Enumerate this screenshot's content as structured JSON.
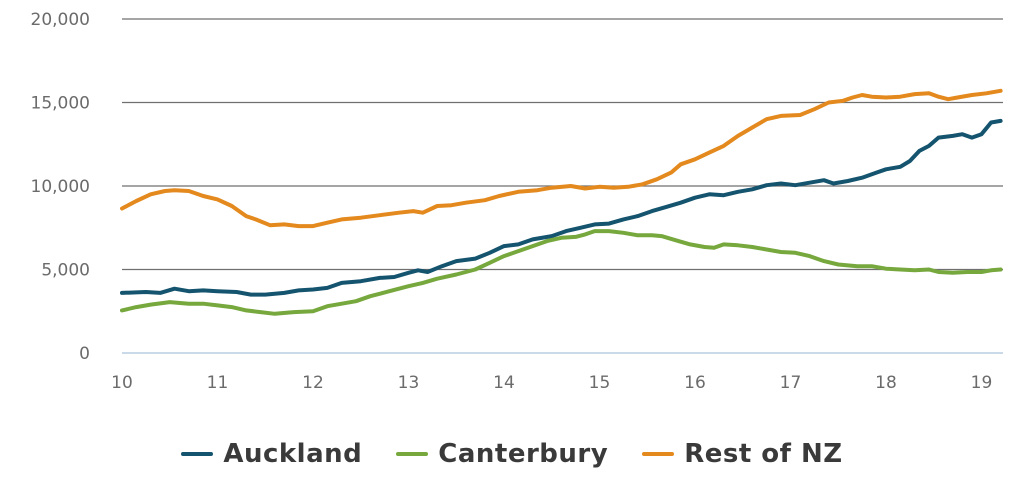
{
  "chart_data": {
    "type": "line",
    "title": "",
    "xlabel": "",
    "ylabel": "",
    "xlim": [
      10,
      19.2
    ],
    "ylim": [
      0,
      20000
    ],
    "grid": true,
    "legend_position": "bottom",
    "x_ticks": [
      {
        "value": 10,
        "label": "10"
      },
      {
        "value": 11,
        "label": "11"
      },
      {
        "value": 12,
        "label": "12"
      },
      {
        "value": 13,
        "label": "13"
      },
      {
        "value": 14,
        "label": "14"
      },
      {
        "value": 15,
        "label": "15"
      },
      {
        "value": 16,
        "label": "16"
      },
      {
        "value": 17,
        "label": "17"
      },
      {
        "value": 18,
        "label": "18"
      },
      {
        "value": 19,
        "label": "19"
      }
    ],
    "y_ticks": [
      {
        "value": 0,
        "label": "0"
      },
      {
        "value": 5000,
        "label": "5,000"
      },
      {
        "value": 10000,
        "label": "10,000"
      },
      {
        "value": 15000,
        "label": "15,000"
      },
      {
        "value": 20000,
        "label": "20,000"
      }
    ],
    "series": [
      {
        "name": "Auckland",
        "color": "#15546e",
        "points": [
          [
            10.0,
            3600
          ],
          [
            10.25,
            3650
          ],
          [
            10.4,
            3600
          ],
          [
            10.55,
            3850
          ],
          [
            10.7,
            3700
          ],
          [
            10.85,
            3750
          ],
          [
            11.0,
            3700
          ],
          [
            11.2,
            3650
          ],
          [
            11.35,
            3500
          ],
          [
            11.5,
            3500
          ],
          [
            11.7,
            3600
          ],
          [
            11.85,
            3750
          ],
          [
            12.0,
            3800
          ],
          [
            12.15,
            3900
          ],
          [
            12.3,
            4200
          ],
          [
            12.5,
            4300
          ],
          [
            12.7,
            4500
          ],
          [
            12.85,
            4550
          ],
          [
            13.0,
            4800
          ],
          [
            13.1,
            4950
          ],
          [
            13.2,
            4850
          ],
          [
            13.35,
            5200
          ],
          [
            13.5,
            5500
          ],
          [
            13.7,
            5650
          ],
          [
            13.85,
            6000
          ],
          [
            14.0,
            6400
          ],
          [
            14.15,
            6500
          ],
          [
            14.3,
            6800
          ],
          [
            14.5,
            7000
          ],
          [
            14.65,
            7300
          ],
          [
            14.8,
            7500
          ],
          [
            14.95,
            7700
          ],
          [
            15.1,
            7750
          ],
          [
            15.25,
            8000
          ],
          [
            15.4,
            8200
          ],
          [
            15.55,
            8500
          ],
          [
            15.7,
            8750
          ],
          [
            15.85,
            9000
          ],
          [
            16.0,
            9300
          ],
          [
            16.15,
            9500
          ],
          [
            16.3,
            9450
          ],
          [
            16.45,
            9650
          ],
          [
            16.6,
            9800
          ],
          [
            16.75,
            10050
          ],
          [
            16.9,
            10150
          ],
          [
            17.05,
            10050
          ],
          [
            17.2,
            10200
          ],
          [
            17.35,
            10350
          ],
          [
            17.45,
            10150
          ],
          [
            17.6,
            10300
          ],
          [
            17.75,
            10500
          ],
          [
            17.9,
            10800
          ],
          [
            18.0,
            11000
          ],
          [
            18.15,
            11150
          ],
          [
            18.25,
            11500
          ],
          [
            18.35,
            12100
          ],
          [
            18.45,
            12400
          ],
          [
            18.55,
            12900
          ],
          [
            18.7,
            13000
          ],
          [
            18.8,
            13100
          ],
          [
            18.9,
            12900
          ],
          [
            19.0,
            13100
          ],
          [
            19.1,
            13800
          ],
          [
            19.2,
            13900
          ]
        ]
      },
      {
        "name": "Canterbury",
        "color": "#76a83d",
        "points": [
          [
            10.0,
            2550
          ],
          [
            10.15,
            2750
          ],
          [
            10.3,
            2900
          ],
          [
            10.5,
            3050
          ],
          [
            10.7,
            2950
          ],
          [
            10.85,
            2950
          ],
          [
            11.0,
            2850
          ],
          [
            11.15,
            2750
          ],
          [
            11.3,
            2550
          ],
          [
            11.45,
            2450
          ],
          [
            11.6,
            2350
          ],
          [
            11.8,
            2450
          ],
          [
            12.0,
            2500
          ],
          [
            12.15,
            2800
          ],
          [
            12.3,
            2950
          ],
          [
            12.45,
            3100
          ],
          [
            12.6,
            3400
          ],
          [
            12.8,
            3700
          ],
          [
            13.0,
            4000
          ],
          [
            13.15,
            4200
          ],
          [
            13.3,
            4450
          ],
          [
            13.5,
            4700
          ],
          [
            13.7,
            5000
          ],
          [
            13.85,
            5400
          ],
          [
            14.0,
            5800
          ],
          [
            14.15,
            6100
          ],
          [
            14.3,
            6400
          ],
          [
            14.45,
            6700
          ],
          [
            14.6,
            6900
          ],
          [
            14.75,
            6950
          ],
          [
            14.85,
            7100
          ],
          [
            14.95,
            7300
          ],
          [
            15.1,
            7300
          ],
          [
            15.25,
            7200
          ],
          [
            15.4,
            7050
          ],
          [
            15.55,
            7050
          ],
          [
            15.65,
            7000
          ],
          [
            15.8,
            6750
          ],
          [
            15.95,
            6500
          ],
          [
            16.1,
            6350
          ],
          [
            16.2,
            6300
          ],
          [
            16.3,
            6500
          ],
          [
            16.45,
            6450
          ],
          [
            16.6,
            6350
          ],
          [
            16.75,
            6200
          ],
          [
            16.9,
            6050
          ],
          [
            17.05,
            6000
          ],
          [
            17.2,
            5800
          ],
          [
            17.35,
            5500
          ],
          [
            17.5,
            5300
          ],
          [
            17.7,
            5200
          ],
          [
            17.85,
            5200
          ],
          [
            18.0,
            5050
          ],
          [
            18.15,
            5000
          ],
          [
            18.3,
            4950
          ],
          [
            18.45,
            5000
          ],
          [
            18.55,
            4850
          ],
          [
            18.7,
            4800
          ],
          [
            18.85,
            4850
          ],
          [
            19.0,
            4850
          ],
          [
            19.1,
            4950
          ],
          [
            19.2,
            5000
          ]
        ]
      },
      {
        "name": "Rest of NZ",
        "color": "#e3891d",
        "points": [
          [
            10.0,
            8650
          ],
          [
            10.15,
            9100
          ],
          [
            10.3,
            9500
          ],
          [
            10.45,
            9700
          ],
          [
            10.55,
            9750
          ],
          [
            10.7,
            9700
          ],
          [
            10.85,
            9400
          ],
          [
            11.0,
            9200
          ],
          [
            11.15,
            8800
          ],
          [
            11.3,
            8200
          ],
          [
            11.4,
            8000
          ],
          [
            11.55,
            7650
          ],
          [
            11.7,
            7700
          ],
          [
            11.85,
            7600
          ],
          [
            12.0,
            7600
          ],
          [
            12.15,
            7800
          ],
          [
            12.3,
            8000
          ],
          [
            12.5,
            8100
          ],
          [
            12.7,
            8250
          ],
          [
            12.9,
            8400
          ],
          [
            13.05,
            8500
          ],
          [
            13.15,
            8400
          ],
          [
            13.3,
            8800
          ],
          [
            13.45,
            8850
          ],
          [
            13.6,
            9000
          ],
          [
            13.8,
            9150
          ],
          [
            13.95,
            9400
          ],
          [
            14.15,
            9650
          ],
          [
            14.35,
            9750
          ],
          [
            14.5,
            9900
          ],
          [
            14.7,
            10000
          ],
          [
            14.85,
            9850
          ],
          [
            15.0,
            9950
          ],
          [
            15.15,
            9900
          ],
          [
            15.3,
            9950
          ],
          [
            15.45,
            10100
          ],
          [
            15.6,
            10400
          ],
          [
            15.75,
            10800
          ],
          [
            15.85,
            11300
          ],
          [
            16.0,
            11600
          ],
          [
            16.15,
            12000
          ],
          [
            16.3,
            12400
          ],
          [
            16.45,
            13000
          ],
          [
            16.6,
            13500
          ],
          [
            16.75,
            14000
          ],
          [
            16.9,
            14200
          ],
          [
            17.1,
            14250
          ],
          [
            17.25,
            14600
          ],
          [
            17.4,
            15000
          ],
          [
            17.55,
            15100
          ],
          [
            17.65,
            15300
          ],
          [
            17.75,
            15450
          ],
          [
            17.85,
            15350
          ],
          [
            18.0,
            15300
          ],
          [
            18.15,
            15350
          ],
          [
            18.3,
            15500
          ],
          [
            18.45,
            15550
          ],
          [
            18.55,
            15350
          ],
          [
            18.65,
            15200
          ],
          [
            18.75,
            15300
          ],
          [
            18.9,
            15450
          ],
          [
            19.05,
            15550
          ],
          [
            19.2,
            15700
          ]
        ]
      }
    ]
  }
}
